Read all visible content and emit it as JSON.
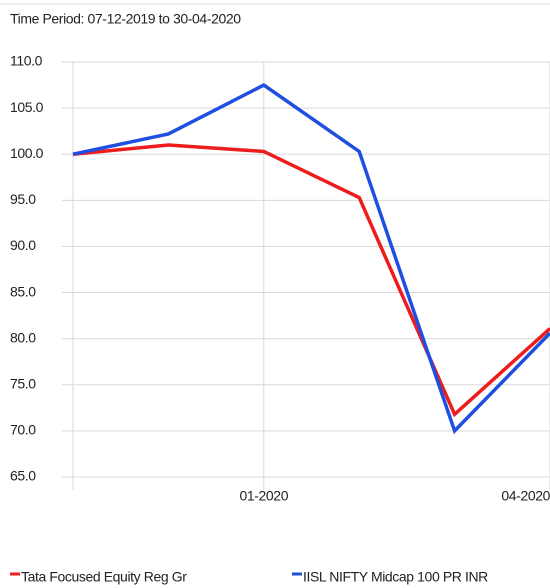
{
  "chart_data": {
    "type": "line",
    "subtitle": "Time Period: 07-12-2019 to 30-04-2020",
    "categories": [
      null,
      null,
      "01-2020",
      null,
      null,
      "04-2020"
    ],
    "series": [
      {
        "name": "Tata Focused Equity Reg Gr",
        "color": "#ee1c1c",
        "values": [
          100.0,
          101.0,
          100.3,
          95.3,
          71.8,
          81.1
        ]
      },
      {
        "name": "IISL NIFTY Midcap 100 PR INR",
        "color": "#1f4fe0",
        "values": [
          100.0,
          102.2,
          107.5,
          100.3,
          70.0,
          80.6
        ]
      }
    ],
    "ylim": [
      65,
      110
    ],
    "yticks": [
      {
        "value": 65,
        "label": "65.0"
      },
      {
        "value": 70,
        "label": "70.0"
      },
      {
        "value": 75,
        "label": "75.0"
      },
      {
        "value": 80,
        "label": "80.0"
      },
      {
        "value": 85,
        "label": "85.0"
      },
      {
        "value": 90,
        "label": "90.0"
      },
      {
        "value": 95,
        "label": "95.0"
      },
      {
        "value": 100,
        "label": "100.0"
      },
      {
        "value": 105,
        "label": "105.0"
      },
      {
        "value": 110,
        "label": "110.0"
      }
    ],
    "grid": true
  }
}
